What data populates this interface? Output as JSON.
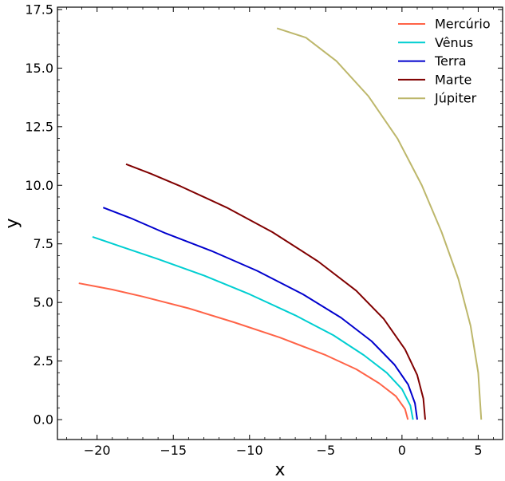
{
  "chart_data": {
    "type": "line",
    "title": "",
    "xlabel": "x",
    "ylabel": "y",
    "xlim": [
      -22.6,
      6.6
    ],
    "ylim": [
      -0.85,
      17.6
    ],
    "xticks": [
      -20,
      -15,
      -10,
      -5,
      0,
      5
    ],
    "xtick_labels": [
      "−20",
      "−15",
      "−10",
      "−5",
      "0",
      "5"
    ],
    "yticks": [
      0.0,
      2.5,
      5.0,
      7.5,
      10.0,
      12.5,
      15.0,
      17.5
    ],
    "ytick_labels": [
      "0.0",
      "2.5",
      "5.0",
      "7.5",
      "10.0",
      "12.5",
      "15.0",
      "17.5"
    ],
    "grid": false,
    "legend_position": "top-right",
    "series": [
      {
        "name": "Mercúrio",
        "color": "#ff6347",
        "points": [
          [
            0.387,
            0.0
          ],
          [
            0.2,
            0.45
          ],
          [
            -0.4,
            1.0
          ],
          [
            -1.5,
            1.55
          ],
          [
            -3.0,
            2.15
          ],
          [
            -5.0,
            2.75
          ],
          [
            -8.0,
            3.5
          ],
          [
            -11.0,
            4.15
          ],
          [
            -14.0,
            4.75
          ],
          [
            -17.0,
            5.25
          ],
          [
            -19.0,
            5.55
          ],
          [
            -21.2,
            5.82
          ]
        ]
      },
      {
        "name": "Vênus",
        "color": "#00ced1",
        "points": [
          [
            0.723,
            0.0
          ],
          [
            0.55,
            0.6
          ],
          [
            0.0,
            1.3
          ],
          [
            -1.0,
            2.0
          ],
          [
            -2.5,
            2.75
          ],
          [
            -4.5,
            3.6
          ],
          [
            -7.0,
            4.45
          ],
          [
            -10.0,
            5.35
          ],
          [
            -13.0,
            6.15
          ],
          [
            -16.0,
            6.85
          ],
          [
            -18.5,
            7.4
          ],
          [
            -20.3,
            7.8
          ]
        ]
      },
      {
        "name": "Terra",
        "color": "#0000cd",
        "points": [
          [
            1.0,
            0.0
          ],
          [
            0.85,
            0.7
          ],
          [
            0.4,
            1.5
          ],
          [
            -0.5,
            2.35
          ],
          [
            -2.0,
            3.35
          ],
          [
            -4.0,
            4.35
          ],
          [
            -6.5,
            5.35
          ],
          [
            -9.5,
            6.35
          ],
          [
            -12.5,
            7.2
          ],
          [
            -15.5,
            7.95
          ],
          [
            -17.8,
            8.6
          ],
          [
            -19.6,
            9.05
          ]
        ]
      },
      {
        "name": "Marte",
        "color": "#800000",
        "points": [
          [
            1.524,
            0.0
          ],
          [
            1.4,
            0.9
          ],
          [
            1.0,
            1.9
          ],
          [
            0.2,
            3.0
          ],
          [
            -1.2,
            4.3
          ],
          [
            -3.0,
            5.5
          ],
          [
            -5.5,
            6.75
          ],
          [
            -8.5,
            8.0
          ],
          [
            -11.5,
            9.05
          ],
          [
            -14.5,
            9.95
          ],
          [
            -16.5,
            10.5
          ],
          [
            -18.1,
            10.9
          ]
        ]
      },
      {
        "name": "Júpiter",
        "color": "#bdb76b",
        "points": [
          [
            5.2,
            0.0
          ],
          [
            5.0,
            2.0
          ],
          [
            4.5,
            4.0
          ],
          [
            3.7,
            6.0
          ],
          [
            2.6,
            8.0
          ],
          [
            1.3,
            10.0
          ],
          [
            -0.3,
            12.0
          ],
          [
            -2.2,
            13.8
          ],
          [
            -4.3,
            15.3
          ],
          [
            -6.3,
            16.3
          ],
          [
            -8.2,
            16.7
          ]
        ]
      }
    ]
  }
}
